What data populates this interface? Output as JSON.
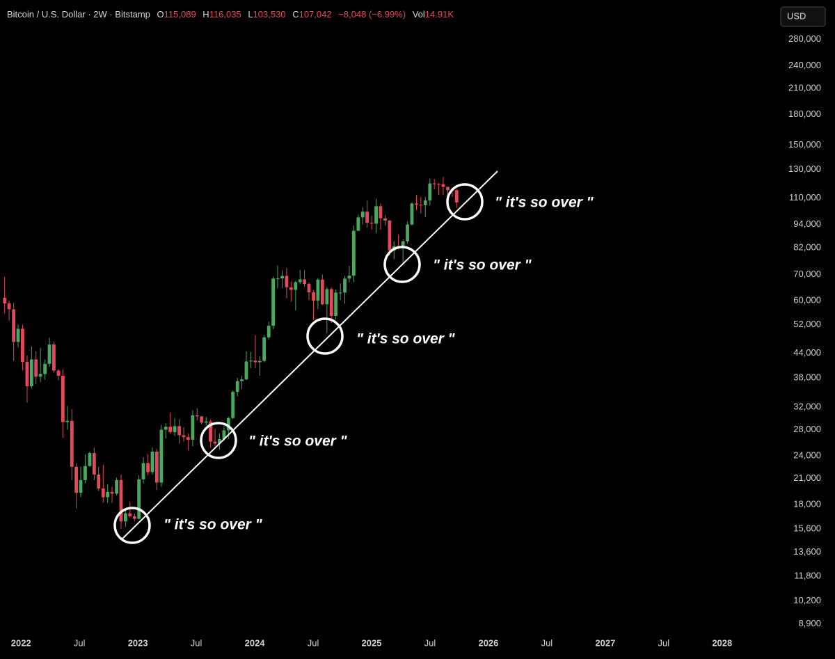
{
  "chart_data": {
    "type": "candlestick",
    "header": {
      "symbol": "Bitcoin / U.S. Dollar · 2W · Bitstamp",
      "open_key": "O",
      "open": "115,089",
      "high_key": "H",
      "high": "116,035",
      "low_key": "L",
      "low": "103,530",
      "close_key": "C",
      "close": "107,042",
      "change": "−8,048 (−6.99%)",
      "volume_key": "Vol",
      "volume": "14.91K"
    },
    "currency": "USD",
    "annotations": [
      "\" it's so over \"",
      "\" it's so over \"",
      "\" it's so over \"",
      "\" it's so over \"",
      "\" it's so over \""
    ],
    "up_color": "#4aa85f",
    "down_color": "#e5485a",
    "yscale": "log",
    "xlim": [
      2021.82,
      2028.43
    ],
    "ylim": [
      8600,
      300000
    ],
    "xticks": [
      2022,
      {
        "value": 2022.5,
        "label": "Jul"
      },
      2023,
      {
        "value": 2023.5,
        "label": "Jul"
      },
      2024,
      {
        "value": 2024.5,
        "label": "Jul"
      },
      2025,
      {
        "value": 2025.5,
        "label": "Jul"
      },
      2026,
      {
        "value": 2026.5,
        "label": "Jul"
      },
      2027,
      {
        "value": 2027.5,
        "label": "Jul"
      },
      2028
    ],
    "yticks": [
      {
        "value": 280000,
        "label": "280,000"
      },
      {
        "value": 240000,
        "label": "240,000"
      },
      {
        "value": 210000,
        "label": "210,000"
      },
      {
        "value": 180000,
        "label": "180,000"
      },
      {
        "value": 150000,
        "label": "150,000"
      },
      {
        "value": 130000,
        "label": "130,000"
      },
      {
        "value": 110000,
        "label": "110,000"
      },
      {
        "value": 94000,
        "label": "94,000"
      },
      {
        "value": 82000,
        "label": "82,000"
      },
      {
        "value": 70000,
        "label": "70,000"
      },
      {
        "value": 60000,
        "label": "60,000"
      },
      {
        "value": 52000,
        "label": "52,000"
      },
      {
        "value": 44000,
        "label": "44,000"
      },
      {
        "value": 38000,
        "label": "38,000"
      },
      {
        "value": 32000,
        "label": "32,000"
      },
      {
        "value": 28000,
        "label": "28,000"
      },
      {
        "value": 24000,
        "label": "24,000"
      },
      {
        "value": 21000,
        "label": "21,000"
      },
      {
        "value": 18000,
        "label": "18,000"
      },
      {
        "value": 15600,
        "label": "15,600"
      },
      {
        "value": 13600,
        "label": "13,600"
      },
      {
        "value": 11800,
        "label": "11,800"
      },
      {
        "value": 10200,
        "label": "10,200"
      },
      {
        "value": 8900,
        "label": "8,900"
      }
    ],
    "x": [
      2021.86,
      2021.898,
      2021.937,
      2021.975,
      2022.013,
      2022.052,
      2022.09,
      2022.128,
      2022.166,
      2022.205,
      2022.243,
      2022.281,
      2022.32,
      2022.358,
      2022.396,
      2022.435,
      2022.473,
      2022.511,
      2022.549,
      2022.588,
      2022.626,
      2022.664,
      2022.703,
      2022.741,
      2022.779,
      2022.818,
      2022.856,
      2022.894,
      2022.932,
      2022.971,
      2023.009,
      2023.047,
      2023.086,
      2023.124,
      2023.162,
      2023.201,
      2023.239,
      2023.277,
      2023.315,
      2023.354,
      2023.392,
      2023.43,
      2023.469,
      2023.507,
      2023.545,
      2023.584,
      2023.622,
      2023.66,
      2023.698,
      2023.737,
      2023.775,
      2023.813,
      2023.852,
      2023.89,
      2023.928,
      2023.967,
      2024.005,
      2024.043,
      2024.081,
      2024.12,
      2024.158,
      2024.196,
      2024.235,
      2024.273,
      2024.311,
      2024.35,
      2024.388,
      2024.426,
      2024.464,
      2024.503,
      2024.541,
      2024.579,
      2024.618,
      2024.656,
      2024.694,
      2024.733,
      2024.771,
      2024.809,
      2024.847,
      2024.886,
      2024.924,
      2024.962,
      2025.001,
      2025.039,
      2025.077,
      2025.116,
      2025.154,
      2025.192,
      2025.23,
      2025.269,
      2025.307,
      2025.345,
      2025.384,
      2025.422,
      2025.46,
      2025.499,
      2025.537,
      2025.575,
      2025.613,
      2025.652,
      2025.69,
      2025.728
    ],
    "open": [
      61000,
      59000,
      57000,
      47000,
      50800,
      41800,
      36200,
      42400,
      38300,
      38900,
      41300,
      46300,
      39700,
      38500,
      29300,
      29500,
      22500,
      19300,
      20800,
      22600,
      24400,
      21500,
      19800,
      18800,
      19400,
      19200,
      20800,
      16300,
      17100,
      16800,
      16550,
      20900,
      23000,
      21800,
      24600,
      20500,
      28000,
      28500,
      27600,
      28600,
      27100,
      26800,
      26400,
      30500,
      30300,
      29200,
      29400,
      26100,
      25800,
      26500,
      27900,
      30000,
      35000,
      37300,
      37700,
      41900,
      42100,
      41700,
      42000,
      48300,
      51700,
      68300,
      68400,
      69400,
      64900,
      63900,
      66900,
      68000,
      66200,
      63000,
      60000,
      67900,
      58700,
      64200,
      54800,
      62900,
      62900,
      68300,
      69500,
      90600,
      98000,
      101400,
      95000,
      94500,
      104700,
      97500,
      96200,
      80700,
      82700,
      82500,
      85100,
      94000,
      106400,
      105600,
      105400,
      108300,
      119800,
      119400,
      119200,
      117400,
      115100,
      115089
    ],
    "high": [
      69000,
      60000,
      59200,
      52100,
      52000,
      43400,
      45800,
      44500,
      45400,
      42400,
      48200,
      47100,
      40000,
      40000,
      32200,
      31600,
      23000,
      22500,
      24200,
      24600,
      25200,
      22500,
      22800,
      20300,
      20000,
      21100,
      21500,
      17500,
      18300,
      17100,
      21400,
      23800,
      24200,
      25200,
      25000,
      28800,
      29100,
      31000,
      30000,
      29800,
      28400,
      27400,
      31400,
      31800,
      30400,
      30200,
      29700,
      28100,
      27400,
      28600,
      30200,
      35300,
      38000,
      38500,
      44500,
      44300,
      48900,
      43200,
      48900,
      52900,
      69100,
      73800,
      71700,
      72700,
      67200,
      67400,
      71900,
      71900,
      66700,
      63800,
      68500,
      70000,
      65000,
      64900,
      64100,
      66400,
      69400,
      73600,
      93400,
      99600,
      104000,
      108300,
      99000,
      109400,
      106400,
      99500,
      96500,
      85300,
      88700,
      86100,
      95700,
      107100,
      111900,
      110500,
      110600,
      123200,
      123100,
      120000,
      124500,
      117400,
      117000,
      116035
    ],
    "low": [
      55600,
      53300,
      42000,
      45500,
      39700,
      32900,
      35700,
      36600,
      37100,
      37600,
      40600,
      39200,
      37500,
      26700,
      28000,
      20800,
      17600,
      18800,
      20400,
      22500,
      20800,
      19500,
      18200,
      18200,
      18200,
      19000,
      15600,
      15800,
      16700,
      16300,
      16500,
      20400,
      21400,
      21500,
      19600,
      20000,
      26600,
      27300,
      27000,
      25800,
      26100,
      24800,
      25400,
      29600,
      28900,
      28700,
      25200,
      25400,
      24900,
      26200,
      26500,
      29800,
      34100,
      35600,
      37500,
      40300,
      40300,
      38500,
      41700,
      47700,
      50700,
      64600,
      64600,
      60800,
      59700,
      56600,
      66100,
      65000,
      60200,
      53500,
      57000,
      58500,
      49500,
      52600,
      53600,
      60200,
      58900,
      66800,
      66900,
      90500,
      94000,
      92200,
      91200,
      89300,
      91200,
      93400,
      78200,
      76600,
      81200,
      74500,
      83900,
      93400,
      102200,
      100400,
      98200,
      105100,
      115700,
      112000,
      111800,
      107400,
      110600,
      103530
    ],
    "close": [
      59000,
      57000,
      47000,
      50800,
      41800,
      36200,
      42400,
      38300,
      38900,
      41300,
      46300,
      39700,
      38500,
      29300,
      29500,
      22500,
      19300,
      20800,
      22600,
      24400,
      21500,
      19800,
      18800,
      19400,
      19200,
      20800,
      16300,
      17100,
      16800,
      16550,
      20900,
      23000,
      21800,
      24600,
      20500,
      28000,
      28500,
      27600,
      28600,
      27100,
      26800,
      26400,
      30500,
      30300,
      29200,
      29400,
      26100,
      25800,
      26500,
      27900,
      30000,
      35000,
      37300,
      37700,
      41900,
      42100,
      41700,
      42000,
      48300,
      51700,
      68300,
      68400,
      69400,
      64900,
      63900,
      66900,
      68000,
      66200,
      63000,
      60000,
      67900,
      58700,
      64200,
      54800,
      62900,
      62900,
      68300,
      69500,
      90600,
      98000,
      101400,
      95000,
      94500,
      104700,
      97500,
      96200,
      80700,
      82700,
      82500,
      85100,
      94000,
      106400,
      105600,
      105400,
      108300,
      119800,
      119400,
      119200,
      117400,
      115100,
      115089,
      107042
    ]
  }
}
